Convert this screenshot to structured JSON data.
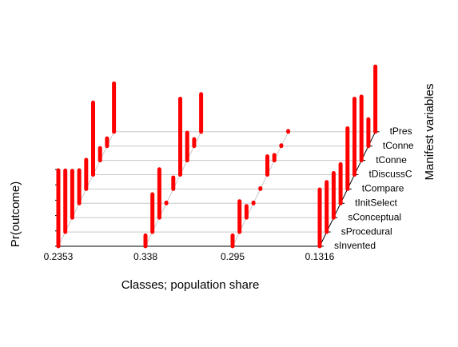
{
  "chart_data": {
    "type": "bar3d",
    "xlabel": "Classes; population share",
    "ylabel": "Manifest variables",
    "zlabel": "Pr(outcome)",
    "categories": [
      "0.2353",
      "0.338",
      "0.295",
      "0.1316"
    ],
    "variables": [
      "sInvented",
      "sProcedural",
      "sConceptual",
      "tInitSelect",
      "tCompare",
      "tDiscussC",
      "tConne",
      "tConne",
      "tPres"
    ],
    "values": [
      [
        0.99,
        0.8,
        0.61,
        0.43,
        0.38,
        0.94,
        0.16,
        0.1,
        0.63
      ],
      [
        0.14,
        0.49,
        0.63,
        0.01,
        0.15,
        0.99,
        0.36,
        0.09,
        0.49
      ],
      [
        0.14,
        0.4,
        0.15,
        0.01,
        0.01,
        0.24,
        0.07,
        0.01,
        0.01
      ],
      [
        0.74,
        0.65,
        0.58,
        0.51,
        0.79,
        0.99,
        0.83,
        0.35,
        0.85
      ]
    ],
    "zlim": [
      0,
      1
    ],
    "zticks": [
      0,
      0.2,
      0.4,
      0.6,
      0.8,
      1
    ],
    "color": "#ff0000"
  }
}
